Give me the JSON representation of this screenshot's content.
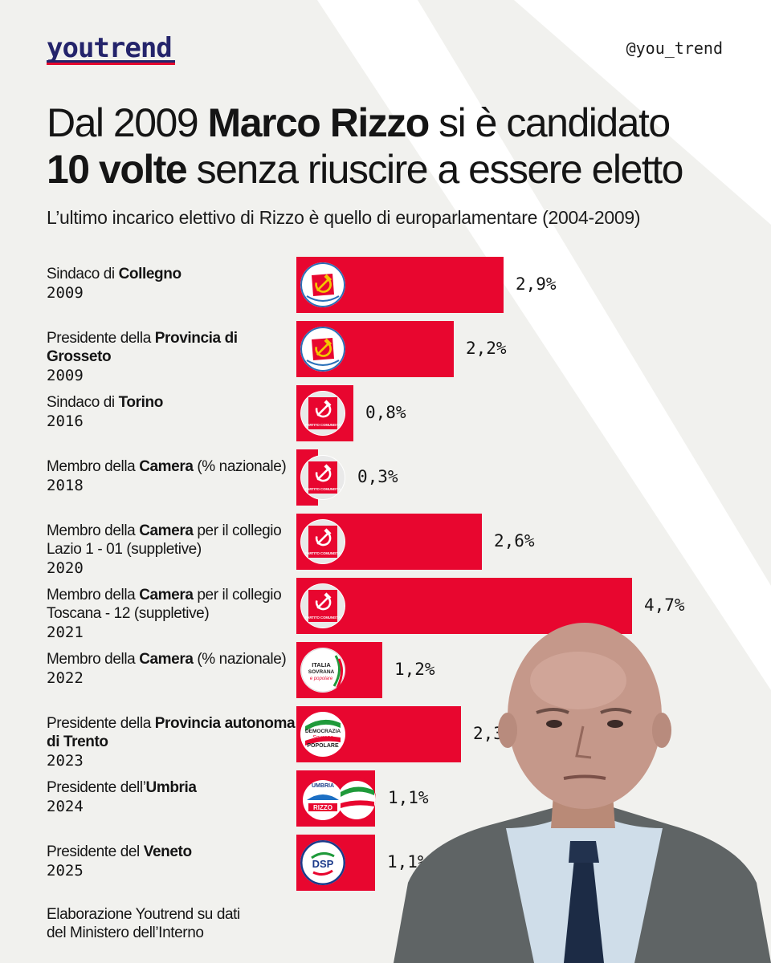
{
  "brand": {
    "logo": "youtrend",
    "handle": "@you_trend"
  },
  "title": {
    "part1": "Dal 2009 ",
    "name": "Marco Rizzo",
    "part2": " si è candidato",
    "count": "10 volte",
    "part3": " senza riuscire a essere eletto"
  },
  "subtitle": "L’ultimo incarico elettivo di Rizzo è quello di europarlamentare (2004-2009)",
  "footer": {
    "line1": "Elaborazione Youtrend su dati",
    "line2": "del Ministero dell’Interno"
  },
  "colors": {
    "bar": "#e8062f",
    "background": "#f1f1ee",
    "brand_navy": "#24246b"
  },
  "chart_data": {
    "type": "bar",
    "orientation": "horizontal",
    "unit": "%",
    "xlim": [
      0,
      5
    ],
    "categories": [
      "Sindaco di Collegno 2009",
      "Presidente della Provincia di Grosseto 2009",
      "Sindaco di Torino 2016",
      "Membro della Camera (% nazionale) 2018",
      "Membro della Camera per il collegio Lazio 1 - 01 (suppletive) 2020",
      "Membro della Camera per il collegio Toscana - 12 (suppletive) 2021",
      "Membro della Camera (% nazionale) 2022",
      "Presidente della Provincia autonoma di Trento 2023",
      "Presidente dell’Umbria 2024",
      "Presidente del Veneto 2025"
    ],
    "values": [
      2.9,
      2.2,
      0.8,
      0.3,
      2.6,
      4.7,
      1.2,
      2.3,
      1.1,
      1.1
    ],
    "value_labels": [
      "2,9%",
      "2,2%",
      "0,8%",
      "0,3%",
      "2,6%",
      "4,7%",
      "1,2%",
      "2,3%",
      "1,1%",
      "1,1%"
    ],
    "rows": [
      {
        "pre": "Sindaco di ",
        "bold": "Collegno",
        "post": "",
        "year": "2009",
        "logo": "pdci-logo-icon"
      },
      {
        "pre": "Presidente della ",
        "bold": "Provincia di Grosseto",
        "post": "",
        "year": "2009",
        "logo": "pdci-logo-icon"
      },
      {
        "pre": "Sindaco di ",
        "bold": "Torino",
        "post": "",
        "year": "2016",
        "logo": "partito-comunista-logo-icon"
      },
      {
        "pre": "Membro della ",
        "bold": "Camera",
        "post": " (% nazionale)",
        "year": "2018",
        "logo": "partito-comunista-logo-icon"
      },
      {
        "pre": "Membro della ",
        "bold": "Camera",
        "post": " per il collegio Lazio 1 - 01 (suppletive)",
        "year": "2020",
        "logo": "partito-comunista-logo-icon"
      },
      {
        "pre": "Membro della ",
        "bold": "Camera",
        "post": " per il collegio Toscana - 12 (suppletive)",
        "year": "2021",
        "logo": "partito-comunista-logo-icon"
      },
      {
        "pre": "Membro della ",
        "bold": "Camera",
        "post": " (% nazionale)",
        "year": "2022",
        "logo": "italia-sovrana-popolare-logo-icon"
      },
      {
        "pre": "Presidente della ",
        "bold": "Provincia autonoma di Trento",
        "post": "",
        "year": "2023",
        "logo": "democrazia-sovrana-popolare-logo-icon"
      },
      {
        "pre": "Presidente dell’",
        "bold": "Umbria",
        "post": "",
        "year": "2024",
        "logo": "umbria-rizzo-coalition-logo-icon"
      },
      {
        "pre": "Presidente del ",
        "bold": "Veneto",
        "post": "",
        "year": "2025",
        "logo": "dsp-logo-icon"
      }
    ],
    "logo_texts": {
      "italia_sovrana": "ITALIA SOVRANA e popolare",
      "democrazia": "DEMOCRAZIA Sovrana POPOLARE",
      "dsp": "DSP",
      "partito_comunista": "PARTITO COMUNISTA",
      "umbria": "UMBRIA",
      "rizzo": "RIZZO"
    }
  }
}
